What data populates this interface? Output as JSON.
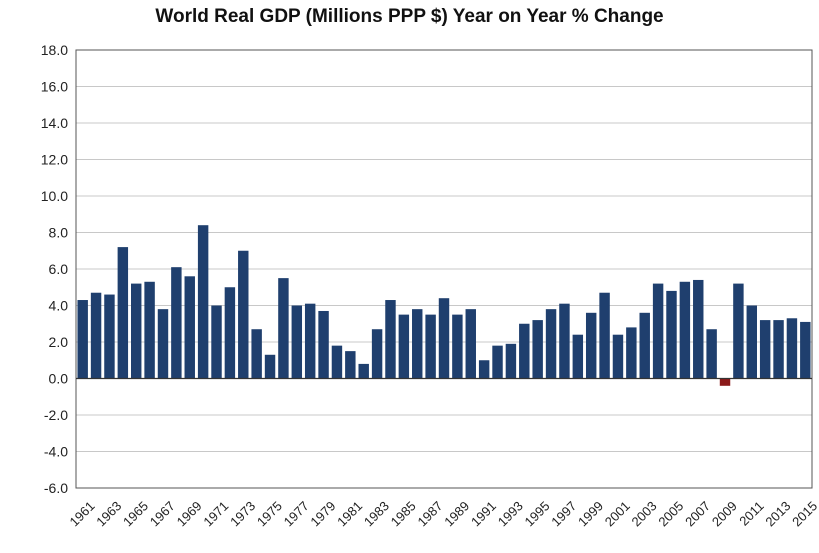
{
  "chart_data": {
    "type": "bar",
    "title": "World Real GDP (Millions PPP $) Year on Year % Change",
    "xlabel": "",
    "ylabel": "",
    "ylim": [
      -6,
      18
    ],
    "yticks": [
      "18.0",
      "16.0",
      "14.0",
      "12.0",
      "10.0",
      "8.0",
      "6.0",
      "4.0",
      "2.0",
      "0.0",
      "-2.0",
      "-4.0",
      "-6.0"
    ],
    "ytick_values": [
      18,
      16,
      14,
      12,
      10,
      8,
      6,
      4,
      2,
      0,
      -2,
      -4,
      -6
    ],
    "grid": true,
    "legend": "none",
    "colors": {
      "positive": "#1f3f6e",
      "negative": "#8b1a1a",
      "grid": "#c8c8c8",
      "axis": "#555555"
    },
    "categories": [
      "1961",
      "1962",
      "1963",
      "1964",
      "1965",
      "1966",
      "1967",
      "1968",
      "1969",
      "1970",
      "1971",
      "1972",
      "1973",
      "1974",
      "1975",
      "1976",
      "1977",
      "1978",
      "1979",
      "1980",
      "1981",
      "1982",
      "1983",
      "1984",
      "1985",
      "1986",
      "1987",
      "1988",
      "1989",
      "1990",
      "1991",
      "1992",
      "1993",
      "1994",
      "1995",
      "1996",
      "1997",
      "1998",
      "1999",
      "2000",
      "2001",
      "2002",
      "2003",
      "2004",
      "2005",
      "2006",
      "2007",
      "2008",
      "2009",
      "2010",
      "2011",
      "2012",
      "2013",
      "2014",
      "2015"
    ],
    "xtick_labels": [
      "1961",
      "1963",
      "1965",
      "1967",
      "1969",
      "1971",
      "1973",
      "1975",
      "1977",
      "1979",
      "1981",
      "1983",
      "1985",
      "1987",
      "1989",
      "1991",
      "1993",
      "1995",
      "1997",
      "1999",
      "2001",
      "2003",
      "2005",
      "2007",
      "2009",
      "2011",
      "2013",
      "2015"
    ],
    "values": [
      4.3,
      4.7,
      4.6,
      7.2,
      5.2,
      5.3,
      3.8,
      6.1,
      5.6,
      8.4,
      4.0,
      5.0,
      7.0,
      2.7,
      1.3,
      5.5,
      4.0,
      4.1,
      3.7,
      1.8,
      1.5,
      0.8,
      2.7,
      4.3,
      3.5,
      3.8,
      3.5,
      4.4,
      3.5,
      3.8,
      1.0,
      1.8,
      1.9,
      3.0,
      3.2,
      3.8,
      4.1,
      2.4,
      3.6,
      4.7,
      2.4,
      2.8,
      3.6,
      5.2,
      4.8,
      5.3,
      5.4,
      2.7,
      -0.4,
      5.2,
      4.0,
      3.2,
      3.2,
      3.3,
      3.1
    ]
  }
}
